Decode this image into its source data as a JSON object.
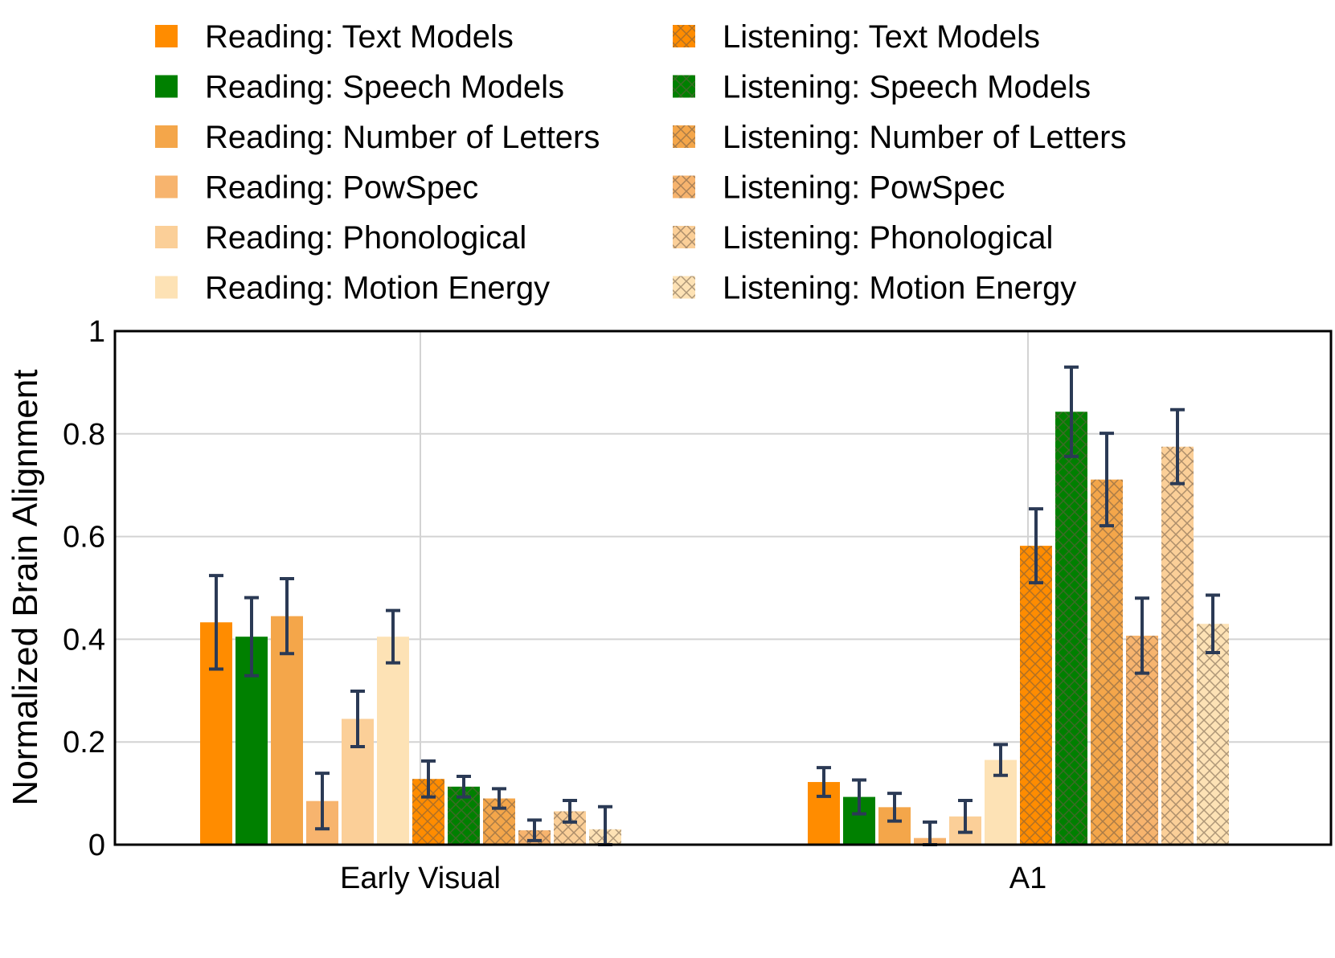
{
  "chart_data": {
    "type": "bar",
    "title": "",
    "xlabel": "",
    "ylabel": "Normalized Brain Alignment",
    "ylim": [
      0,
      1
    ],
    "yticks": [
      0,
      0.2,
      0.4,
      0.6,
      0.8,
      1
    ],
    "ytick_labels": [
      "0",
      "0.2",
      "0.4",
      "0.6",
      "0.8",
      "1"
    ],
    "grid": true,
    "legend_position": "top",
    "categories": [
      "Early Visual",
      "A1"
    ],
    "series": [
      {
        "name": "Reading: Text Models",
        "color": "#ff8c00",
        "hatch": false,
        "values": [
          0.433,
          0.122
        ],
        "errors": [
          0.091,
          0.028
        ]
      },
      {
        "name": "Reading: Speech Models",
        "color": "#008000",
        "hatch": false,
        "values": [
          0.405,
          0.093
        ],
        "errors": [
          0.076,
          0.033
        ]
      },
      {
        "name": "Reading: Number of Letters",
        "color": "#f4a64a",
        "hatch": false,
        "values": [
          0.445,
          0.073
        ],
        "errors": [
          0.073,
          0.027
        ]
      },
      {
        "name": "Reading: PowSpec",
        "color": "#f7b46e",
        "hatch": false,
        "values": [
          0.085,
          0.013
        ],
        "errors": [
          0.054,
          0.031
        ]
      },
      {
        "name": "Reading: Phonological",
        "color": "#fbcf98",
        "hatch": false,
        "values": [
          0.245,
          0.055
        ],
        "errors": [
          0.054,
          0.031
        ]
      },
      {
        "name": "Reading: Motion Energy",
        "color": "#fde2b5",
        "hatch": false,
        "values": [
          0.405,
          0.165
        ],
        "errors": [
          0.051,
          0.03
        ]
      },
      {
        "name": "Listening: Text Models",
        "color": "#ff8c00",
        "hatch": true,
        "values": [
          0.128,
          0.582
        ],
        "errors": [
          0.035,
          0.072
        ]
      },
      {
        "name": "Listening: Speech Models",
        "color": "#008000",
        "hatch": true,
        "values": [
          0.113,
          0.843
        ],
        "errors": [
          0.02,
          0.087
        ]
      },
      {
        "name": "Listening: Number of Letters",
        "color": "#f4a64a",
        "hatch": true,
        "values": [
          0.09,
          0.711
        ],
        "errors": [
          0.019,
          0.09
        ]
      },
      {
        "name": "Listening: PowSpec",
        "color": "#f7b46e",
        "hatch": true,
        "values": [
          0.028,
          0.407
        ],
        "errors": [
          0.02,
          0.073
        ]
      },
      {
        "name": "Listening: Phonological",
        "color": "#fbcf98",
        "hatch": true,
        "values": [
          0.065,
          0.775
        ],
        "errors": [
          0.021,
          0.072
        ]
      },
      {
        "name": "Listening: Motion Energy",
        "color": "#fde2b5",
        "hatch": true,
        "values": [
          0.03,
          0.43
        ],
        "errors": [
          0.044,
          0.056
        ]
      }
    ],
    "error_bar_color": "#2b3a55",
    "grid_color": "#d3d3d3"
  }
}
